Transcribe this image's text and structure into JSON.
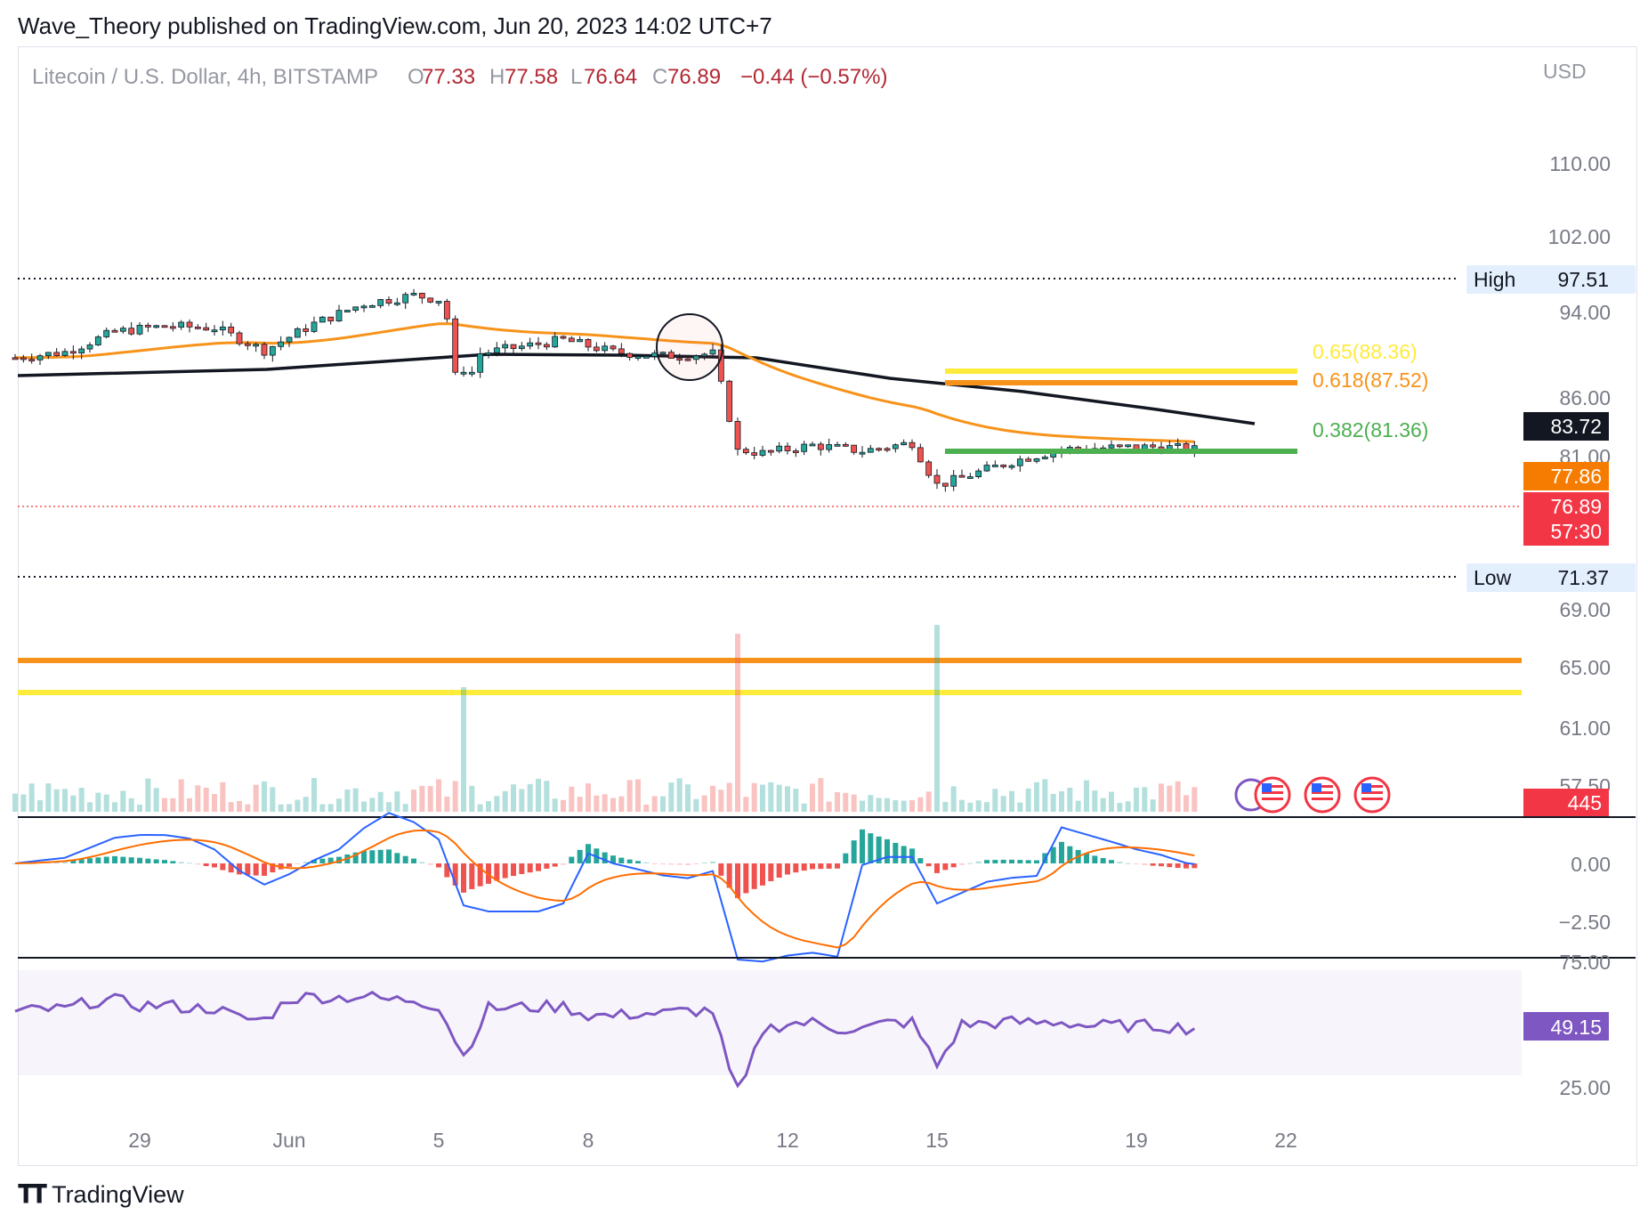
{
  "header": {
    "published": "Wave_Theory published on TradingView.com, Jun 20, 2023 14:02 UTC+7"
  },
  "footer": {
    "brand": "TradingView"
  },
  "colors": {
    "up": "#26a69a",
    "down": "#ef5350",
    "ema50": "#f7931a",
    "ema200": "#131722",
    "fib618": "#f7931a",
    "fib65": "#ffeb3b",
    "fib382": "#4caf50",
    "macd": "#2962ff",
    "signal": "#ff6d00",
    "rsi": "#7e57c2"
  },
  "chart_data": [
    {
      "type": "candlestick",
      "symbol_line": {
        "name": "Litecoin / U.S. Dollar, 4h, BITSTAMP",
        "o_label": "O",
        "o_value": "77.33",
        "h_label": "H",
        "h_value": "77.58",
        "l_label": "L",
        "l_value": "76.64",
        "c_label": "C",
        "c_value": "76.89",
        "change": "−0.44 (−0.57%)"
      },
      "currency": "USD",
      "y_ticks": [
        "110.00",
        "102.00",
        "94.00",
        "86.00",
        "81.00",
        "69.00",
        "65.00",
        "61.00",
        "57.50"
      ],
      "x_ticks": [
        "29",
        "Jun",
        "5",
        "8",
        "12",
        "15",
        "19",
        "22"
      ],
      "x_tick_days": [
        29,
        32,
        35,
        38,
        42,
        45,
        49,
        52
      ],
      "x_axis_day_index": "days from May 1, 2023",
      "price_labels": {
        "high": {
          "text": "High",
          "value": "97.51"
        },
        "low": {
          "text": "Low",
          "value": "71.37"
        },
        "ema200": "83.72",
        "ema50": "77.86",
        "last": "76.89",
        "countdown": "57:30",
        "volume": "445"
      },
      "fib_levels": [
        {
          "label": "0.65(88.36)",
          "value": 88.36
        },
        {
          "label": "0.618(87.52)",
          "value": 87.52
        },
        {
          "label": "0.382(81.36)",
          "value": 81.36
        }
      ],
      "support_levels": [
        66.0,
        63.5
      ],
      "ohlc_closes_daily": [
        {
          "day": 26.5,
          "close": 88.3
        },
        {
          "day": 27.5,
          "close": 89.0
        },
        {
          "day": 28.5,
          "close": 91.5
        },
        {
          "day": 29.5,
          "close": 92.2
        },
        {
          "day": 30.5,
          "close": 92.0
        },
        {
          "day": 31.5,
          "close": 89.2
        },
        {
          "day": 32.5,
          "close": 92.5
        },
        {
          "day": 33.5,
          "close": 95.0
        },
        {
          "day": 34.5,
          "close": 96.0
        },
        {
          "day": 35.0,
          "close": 95.5
        },
        {
          "day": 35.5,
          "close": 88.5
        },
        {
          "day": 36.5,
          "close": 89.5
        },
        {
          "day": 37.5,
          "close": 90.5
        },
        {
          "day": 38.5,
          "close": 89.0
        },
        {
          "day": 39.5,
          "close": 88.5
        },
        {
          "day": 40.5,
          "close": 88.8
        },
        {
          "day": 41.0,
          "close": 77.0
        },
        {
          "day": 41.5,
          "close": 76.5
        },
        {
          "day": 42.5,
          "close": 77.5
        },
        {
          "day": 43.5,
          "close": 76.8
        },
        {
          "day": 44.5,
          "close": 77.8
        },
        {
          "day": 45.0,
          "close": 72.5
        },
        {
          "day": 45.5,
          "close": 73.5
        },
        {
          "day": 46.5,
          "close": 75.5
        },
        {
          "day": 47.5,
          "close": 77.0
        },
        {
          "day": 48.5,
          "close": 77.2
        },
        {
          "day": 49.5,
          "close": 77.3
        },
        {
          "day": 50.3,
          "close": 76.89
        }
      ],
      "macd_ticks": [
        "0.00",
        "−2.50"
      ],
      "rsi_ticks": [
        "75.00",
        "25.00"
      ],
      "rsi_value": "49.15"
    }
  ]
}
